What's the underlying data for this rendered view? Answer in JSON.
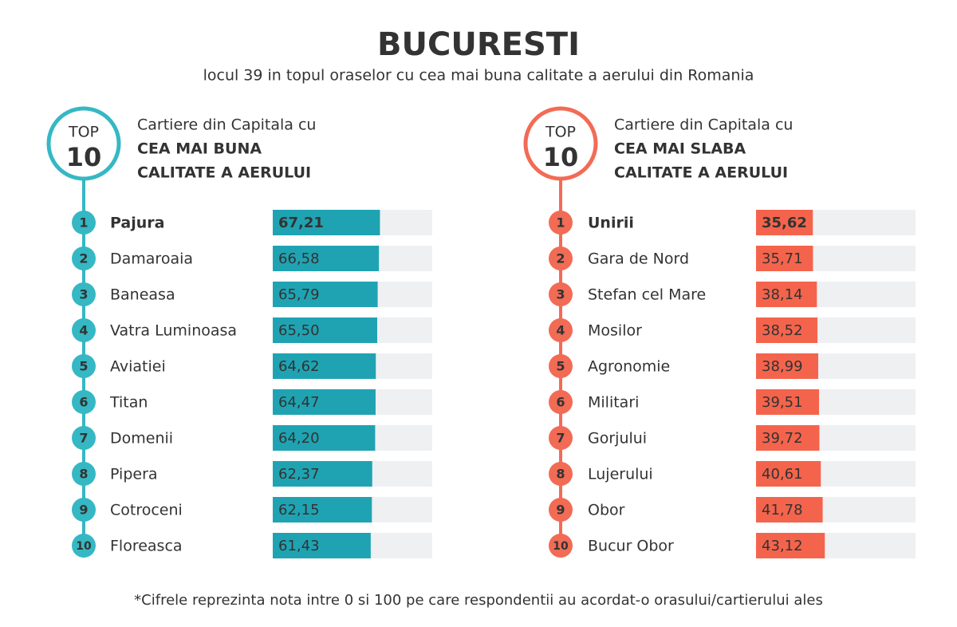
{
  "title": "BUCURESTI",
  "subtitle": "locul 39 in topul oraselor cu cea mai buna calitate a aerului din Romania",
  "footnote": "*Cifrele reprezinta nota intre 0 si 100 pe care respondentii au acordat-o orasului/cartierului ales",
  "chart_data": [
    {
      "type": "bar",
      "orientation": "horizontal",
      "badge": [
        "TOP",
        10
      ],
      "title_lines": [
        "Cartiere din Capitala cu",
        "CEA MAI BUNA",
        "CALITATE A AERULUI"
      ],
      "ranks": [
        1,
        2,
        3,
        4,
        5,
        6,
        7,
        8,
        9,
        10
      ],
      "categories": [
        "Pajura",
        "Damaroaia",
        "Baneasa",
        "Vatra Luminoasa",
        "Aviatiei",
        "Titan",
        "Domenii",
        "Pipera",
        "Cotroceni",
        "Floreasca"
      ],
      "values": [
        67.21,
        66.58,
        65.79,
        65.5,
        64.62,
        64.47,
        64.2,
        62.37,
        62.15,
        61.43
      ],
      "value_labels": [
        "67,21",
        "66,58",
        "65,79",
        "65,50",
        "64,62",
        "64,47",
        "64,20",
        "62,37",
        "62,15",
        "61,43"
      ],
      "xlim": [
        0,
        100
      ],
      "color": "#1fa3b2",
      "accent": "#35b8c4"
    },
    {
      "type": "bar",
      "orientation": "horizontal",
      "badge": [
        "TOP",
        10
      ],
      "title_lines": [
        "Cartiere din Capitala cu",
        "CEA MAI SLABA",
        "CALITATE A AERULUI"
      ],
      "ranks": [
        1,
        2,
        3,
        4,
        5,
        6,
        7,
        8,
        9,
        10
      ],
      "categories": [
        "Unirii",
        "Gara de Nord",
        "Stefan cel Mare",
        "Mosilor",
        "Agronomie",
        "Militari",
        "Gorjului",
        "Lujerului",
        "Obor",
        "Bucur Obor"
      ],
      "values": [
        35.62,
        35.71,
        38.14,
        38.52,
        38.99,
        39.51,
        39.72,
        40.61,
        41.78,
        43.12
      ],
      "value_labels": [
        "35,62",
        "35,71",
        "38,14",
        "38,52",
        "38,99",
        "39,51",
        "39,72",
        "40,61",
        "41,78",
        "43,12"
      ],
      "xlim": [
        0,
        100
      ],
      "color": "#f4644c",
      "accent": "#f26b55"
    }
  ]
}
